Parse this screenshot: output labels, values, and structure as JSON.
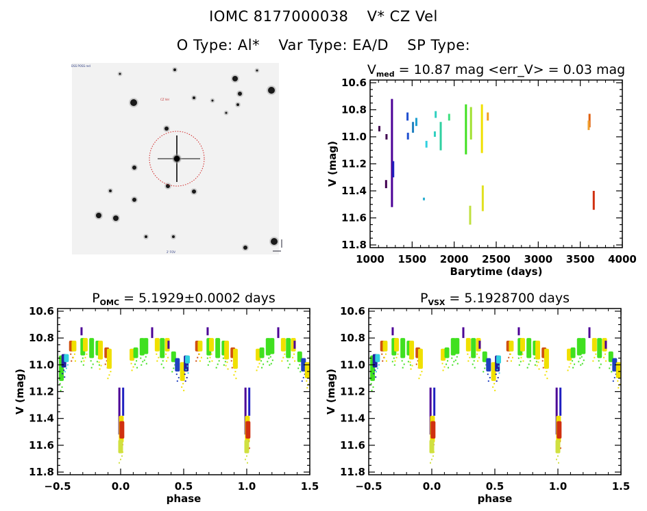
{
  "header": {
    "object_id": "IOMC 8177000038",
    "star_name": "V* CZ Vel",
    "o_type": "O Type: Al*",
    "var_type": "Var Type: EA/D",
    "sp_type": "SP Type:"
  },
  "finder_chart": {
    "label_top_left": "DSS POSS red",
    "label_bottom_center": "2' FOV",
    "label_target": "CZ Vel",
    "marker_color": "#d02020",
    "compass": "N E"
  },
  "chart_data": [
    {
      "id": "lightcurve",
      "type": "scatter",
      "title": "V_med = 10.87 mag <err_V> = 0.03 mag",
      "title_main": "V",
      "title_sub": "med",
      "title_rest": " = 10.87 mag <err_V> = 0.03 mag",
      "xlabel": "Barytime (days)",
      "ylabel": "V (mag)",
      "xlim": [
        1000,
        4000
      ],
      "ylim": [
        11.82,
        10.58
      ],
      "y_inverted": true,
      "xticks": [
        "1000",
        "1500",
        "2000",
        "2500",
        "3000",
        "3500",
        "4000"
      ],
      "yticks": [
        "10.6",
        "10.8",
        "11.0",
        "11.2",
        "11.4",
        "11.6",
        "11.8"
      ],
      "segments": [
        {
          "x": 1110,
          "y": [
            10.92,
            10.96
          ],
          "color": "#400050"
        },
        {
          "x": 1190,
          "y": [
            11.32,
            11.38
          ],
          "color": "#400050"
        },
        {
          "x": 1195,
          "y": [
            10.98,
            11.02
          ],
          "color": "#400050"
        },
        {
          "x": 1260,
          "y": [
            10.72,
            11.52
          ],
          "color": "#4b0096"
        },
        {
          "x": 1275,
          "y": [
            11.18,
            11.3
          ],
          "color": "#2020c0"
        },
        {
          "x": 1445,
          "y": [
            10.82,
            10.88
          ],
          "color": "#2050d0"
        },
        {
          "x": 1450,
          "y": [
            10.97,
            11.02
          ],
          "color": "#2050d0"
        },
        {
          "x": 1510,
          "y": [
            10.89,
            10.97
          ],
          "color": "#2080c0"
        },
        {
          "x": 1550,
          "y": [
            10.86,
            10.92
          ],
          "color": "#20a0d0"
        },
        {
          "x": 1640,
          "y": [
            11.45,
            11.47
          ],
          "color": "#30b0d0"
        },
        {
          "x": 1670,
          "y": [
            11.03,
            11.08
          ],
          "color": "#30d0e0"
        },
        {
          "x": 1780,
          "y": [
            10.81,
            10.86
          ],
          "color": "#30d0c0"
        },
        {
          "x": 1770,
          "y": [
            10.96,
            11.0
          ],
          "color": "#30d0c0"
        },
        {
          "x": 1840,
          "y": [
            10.89,
            11.1
          ],
          "color": "#30d0a0"
        },
        {
          "x": 1940,
          "y": [
            10.83,
            10.88
          ],
          "color": "#40e080"
        },
        {
          "x": 2140,
          "y": [
            10.76,
            11.13
          ],
          "color": "#40e020"
        },
        {
          "x": 2200,
          "y": [
            10.78,
            11.02
          ],
          "color": "#a0e030"
        },
        {
          "x": 2190,
          "y": [
            11.51,
            11.65
          ],
          "color": "#c0e040"
        },
        {
          "x": 2330,
          "y": [
            10.76,
            11.12
          ],
          "color": "#f0e000"
        },
        {
          "x": 2340,
          "y": [
            11.36,
            11.55
          ],
          "color": "#e0e020"
        },
        {
          "x": 2400,
          "y": [
            10.82,
            10.88
          ],
          "color": "#f0a020"
        },
        {
          "x": 3610,
          "y": [
            10.83,
            10.93
          ],
          "color": "#e06010"
        },
        {
          "x": 3600,
          "y": [
            10.88,
            10.95
          ],
          "color": "#f0a030"
        },
        {
          "x": 3660,
          "y": [
            11.4,
            11.54
          ],
          "color": "#d03010"
        }
      ]
    },
    {
      "id": "phase_omc",
      "type": "scatter",
      "title_main": "P",
      "title_sub": "OMC",
      "title_rest": " = 5.1929±0.0002 days",
      "xlabel": "phase",
      "ylabel": "V (mag)",
      "xlim": [
        -0.5,
        1.5
      ],
      "ylim": [
        11.82,
        10.58
      ],
      "y_inverted": true,
      "xticks": [
        "-0.5",
        "0.0",
        "0.5",
        "1.0",
        "1.5"
      ],
      "yticks": [
        "10.6",
        "10.8",
        "11.0",
        "11.2",
        "11.4",
        "11.6",
        "11.8"
      ]
    },
    {
      "id": "phase_vsx",
      "type": "scatter",
      "title_main": "P",
      "title_sub": "VSX",
      "title_rest": " = 5.1928700 days",
      "xlabel": "phase",
      "ylabel": "V (mag)",
      "xlim": [
        -0.5,
        1.5
      ],
      "ylim": [
        11.82,
        10.58
      ],
      "y_inverted": true,
      "xticks": [
        "-0.5",
        "0.0",
        "0.5",
        "1.0",
        "1.5"
      ],
      "yticks": [
        "10.6",
        "10.8",
        "11.0",
        "11.2",
        "11.4",
        "11.6",
        "11.8"
      ]
    }
  ],
  "phase_curve": {
    "description": "Eclipsing binary light curve: max ~10.85 mag, primary eclipse at phase 0/1 to ~11.6 mag, secondary at 0.5 to ~11.1 mag",
    "clusters": [
      {
        "phase": -0.47,
        "y": [
          10.93,
          11.12
        ],
        "color": "#40e020"
      },
      {
        "phase": -0.45,
        "y": [
          10.92,
          11.02
        ],
        "color": "#2020a0"
      },
      {
        "phase": -0.43,
        "y": [
          10.92,
          10.98
        ],
        "color": "#30d0e0"
      },
      {
        "phase": -0.39,
        "y": [
          10.82,
          10.9
        ],
        "color": "#d05010"
      },
      {
        "phase": -0.37,
        "y": [
          10.82,
          10.9
        ],
        "color": "#f0e000"
      },
      {
        "phase": -0.31,
        "y": [
          10.72,
          10.78
        ],
        "color": "#4b0096"
      },
      {
        "phase": -0.3,
        "y": [
          10.8,
          10.93
        ],
        "color": "#40e020"
      },
      {
        "phase": -0.28,
        "y": [
          10.8,
          10.9
        ],
        "color": "#f0e000"
      },
      {
        "phase": -0.23,
        "y": [
          10.8,
          10.95
        ],
        "color": "#40e020"
      },
      {
        "phase": -0.18,
        "y": [
          10.82,
          10.93
        ],
        "color": "#40e020"
      },
      {
        "phase": -0.16,
        "y": [
          10.82,
          10.96
        ],
        "color": "#f0e000"
      },
      {
        "phase": -0.11,
        "y": [
          10.87,
          10.95
        ],
        "color": "#d05010"
      },
      {
        "phase": -0.09,
        "y": [
          10.88,
          11.03
        ],
        "color": "#f0e000"
      },
      {
        "phase": -0.01,
        "y": [
          11.17,
          11.52
        ],
        "color": "#4b0096"
      },
      {
        "phase": 0.005,
        "y": [
          11.38,
          11.58
        ],
        "color": "#f0e000"
      },
      {
        "phase": 0.01,
        "y": [
          11.42,
          11.55
        ],
        "color": "#d03010"
      },
      {
        "phase": 0.02,
        "y": [
          11.17,
          11.38
        ],
        "color": "#2020c0"
      },
      {
        "phase": 0.0,
        "y": [
          11.56,
          11.66
        ],
        "color": "#d0e040"
      },
      {
        "phase": 0.09,
        "y": [
          10.88,
          10.97
        ],
        "color": "#f0e000"
      },
      {
        "phase": 0.12,
        "y": [
          10.87,
          10.95
        ],
        "color": "#40e020"
      },
      {
        "phase": 0.17,
        "y": [
          10.8,
          10.93
        ],
        "color": "#40e020"
      },
      {
        "phase": 0.2,
        "y": [
          10.8,
          10.92
        ],
        "color": "#40e020"
      },
      {
        "phase": 0.25,
        "y": [
          10.72,
          10.8
        ],
        "color": "#4b0096"
      },
      {
        "phase": 0.29,
        "y": [
          10.8,
          10.9
        ],
        "color": "#f0e000"
      },
      {
        "phase": 0.33,
        "y": [
          10.8,
          10.95
        ],
        "color": "#40e020"
      },
      {
        "phase": 0.37,
        "y": [
          10.8,
          10.9
        ],
        "color": "#f0e000"
      },
      {
        "phase": 0.38,
        "y": [
          10.82,
          10.88
        ],
        "color": "#4b0096"
      },
      {
        "phase": 0.42,
        "y": [
          10.9,
          10.98
        ],
        "color": "#40e020"
      },
      {
        "phase": 0.45,
        "y": [
          10.95,
          11.05
        ],
        "color": "#2040c0"
      },
      {
        "phase": 0.49,
        "y": [
          10.98,
          11.12
        ],
        "color": "#f0e000"
      },
      {
        "phase": 0.52,
        "y": [
          10.93,
          11.05
        ],
        "color": "#2020a0"
      },
      {
        "phase": 0.53,
        "y": [
          10.93,
          10.99
        ],
        "color": "#30d0e0"
      },
      {
        "phase": 0.61,
        "y": [
          10.82,
          10.9
        ],
        "color": "#d05010"
      },
      {
        "phase": 0.63,
        "y": [
          10.82,
          10.9
        ],
        "color": "#f0e000"
      },
      {
        "phase": 0.69,
        "y": [
          10.72,
          10.78
        ],
        "color": "#4b0096"
      },
      {
        "phase": 0.7,
        "y": [
          10.8,
          10.93
        ],
        "color": "#40e020"
      },
      {
        "phase": 0.72,
        "y": [
          10.8,
          10.9
        ],
        "color": "#f0e000"
      },
      {
        "phase": 0.77,
        "y": [
          10.8,
          10.95
        ],
        "color": "#40e020"
      },
      {
        "phase": 0.82,
        "y": [
          10.82,
          10.93
        ],
        "color": "#40e020"
      },
      {
        "phase": 0.84,
        "y": [
          10.82,
          10.96
        ],
        "color": "#f0e000"
      },
      {
        "phase": 0.89,
        "y": [
          10.87,
          10.95
        ],
        "color": "#d05010"
      },
      {
        "phase": 0.91,
        "y": [
          10.88,
          11.03
        ],
        "color": "#f0e000"
      },
      {
        "phase": 0.99,
        "y": [
          11.17,
          11.52
        ],
        "color": "#4b0096"
      },
      {
        "phase": 1.005,
        "y": [
          11.38,
          11.58
        ],
        "color": "#f0e000"
      },
      {
        "phase": 1.01,
        "y": [
          11.42,
          11.55
        ],
        "color": "#d03010"
      },
      {
        "phase": 1.02,
        "y": [
          11.17,
          11.38
        ],
        "color": "#2020c0"
      },
      {
        "phase": 1.0,
        "y": [
          11.56,
          11.66
        ],
        "color": "#d0e040"
      },
      {
        "phase": 1.09,
        "y": [
          10.88,
          10.97
        ],
        "color": "#f0e000"
      },
      {
        "phase": 1.12,
        "y": [
          10.87,
          10.95
        ],
        "color": "#40e020"
      },
      {
        "phase": 1.17,
        "y": [
          10.8,
          10.93
        ],
        "color": "#40e020"
      },
      {
        "phase": 1.2,
        "y": [
          10.8,
          10.92
        ],
        "color": "#40e020"
      },
      {
        "phase": 1.25,
        "y": [
          10.72,
          10.8
        ],
        "color": "#4b0096"
      },
      {
        "phase": 1.29,
        "y": [
          10.8,
          10.9
        ],
        "color": "#f0e000"
      },
      {
        "phase": 1.33,
        "y": [
          10.8,
          10.95
        ],
        "color": "#40e020"
      },
      {
        "phase": 1.37,
        "y": [
          10.8,
          10.9
        ],
        "color": "#f0e000"
      },
      {
        "phase": 1.38,
        "y": [
          10.82,
          10.88
        ],
        "color": "#4b0096"
      },
      {
        "phase": 1.42,
        "y": [
          10.9,
          10.98
        ],
        "color": "#40e020"
      },
      {
        "phase": 1.45,
        "y": [
          10.95,
          11.05
        ],
        "color": "#2040c0"
      },
      {
        "phase": 1.48,
        "y": [
          10.98,
          11.1
        ],
        "color": "#f0e000"
      }
    ]
  }
}
